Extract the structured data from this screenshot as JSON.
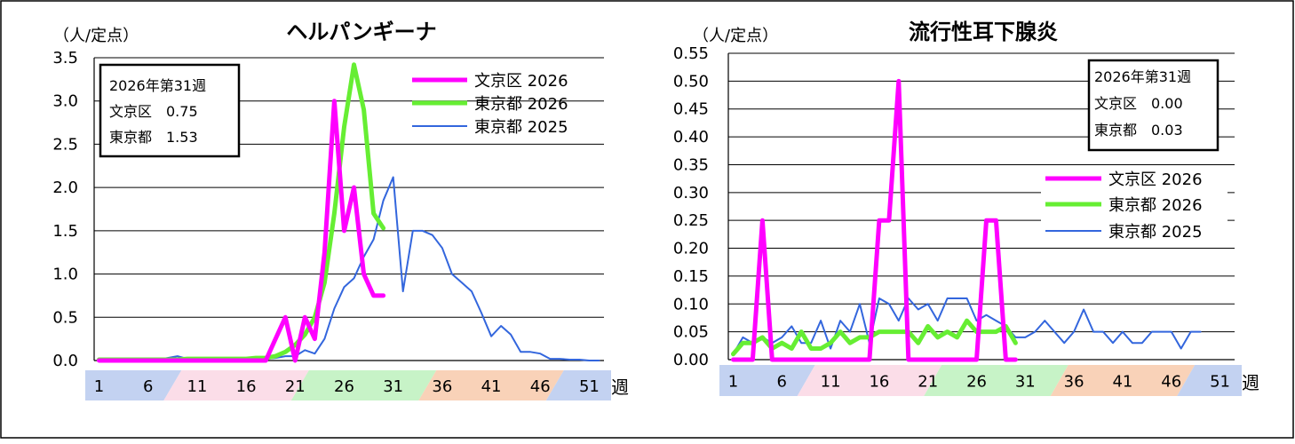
{
  "chart_data": [
    {
      "type": "line",
      "title": "ヘルパンギーナ",
      "ylabel": "（人/定点）",
      "xlabel": "週",
      "ylim": [
        0,
        3.5
      ],
      "ytick_labels": [
        "0.0",
        "0.5",
        "1.0",
        "1.5",
        "2.0",
        "2.5",
        "3.0",
        "3.5"
      ],
      "xtick_labels": [
        "1",
        "6",
        "11",
        "16",
        "21",
        "26",
        "31",
        "36",
        "41",
        "46",
        "51"
      ],
      "xtick_weeks": [
        1,
        6,
        11,
        16,
        21,
        26,
        31,
        36,
        41,
        46,
        51
      ],
      "week_bands": [
        {
          "from": 1,
          "to": 9,
          "color": "#c3d2f1"
        },
        {
          "from": 9,
          "to": 22,
          "color": "#fbdde8"
        },
        {
          "from": 22,
          "to": 35,
          "color": "#c7f3c7"
        },
        {
          "from": 35,
          "to": 48,
          "color": "#f9d2b8"
        },
        {
          "from": 48,
          "to": 53,
          "color": "#c3d2f1"
        }
      ],
      "info_box": {
        "lines": [
          "2026年第31週",
          "文京区　0.75",
          "東京都　1.53"
        ],
        "position": "top-left"
      },
      "legend_position": "top-right",
      "series": [
        {
          "name": "文京区 2026",
          "color": "#ff00ff",
          "values": [
            0,
            0,
            0,
            0,
            0,
            0,
            0,
            0,
            0,
            0,
            0,
            0,
            0,
            0,
            0,
            0,
            0,
            0,
            0.25,
            0.5,
            0.0,
            0.5,
            0.25,
            1.25,
            3.0,
            1.5,
            2.0,
            1.0,
            0.75,
            0.75
          ]
        },
        {
          "name": "東京都 2026",
          "color": "#66ee33",
          "values": [
            0.01,
            0.01,
            0.01,
            0.01,
            0.01,
            0.01,
            0.01,
            0.01,
            0.01,
            0.02,
            0.02,
            0.02,
            0.02,
            0.02,
            0.02,
            0.02,
            0.03,
            0.03,
            0.05,
            0.1,
            0.18,
            0.3,
            0.5,
            0.9,
            1.7,
            2.7,
            3.42,
            2.9,
            1.7,
            1.53
          ]
        },
        {
          "name": "東京都 2025",
          "color": "#3366dd",
          "values": [
            0.01,
            0.01,
            0.01,
            0.01,
            0.01,
            0.01,
            0.01,
            0.03,
            0.05,
            0.02,
            0.02,
            0.02,
            0.02,
            0.02,
            0.02,
            0.02,
            0.02,
            0.02,
            0.03,
            0.05,
            0.05,
            0.12,
            0.08,
            0.25,
            0.6,
            0.85,
            0.95,
            1.2,
            1.4,
            1.85,
            2.12,
            0.8,
            1.5,
            1.5,
            1.45,
            1.3,
            1.0,
            0.9,
            0.8,
            0.55,
            0.28,
            0.4,
            0.3,
            0.1,
            0.1,
            0.08,
            0.02,
            0.02,
            0.01,
            0.01,
            0.0,
            0.0
          ]
        }
      ]
    },
    {
      "type": "line",
      "title": "流行性耳下腺炎",
      "ylabel": "（人/定点）",
      "xlabel": "週",
      "ylim": [
        0,
        0.55
      ],
      "ytick_labels": [
        "0.00",
        "0.05",
        "0.10",
        "0.15",
        "0.20",
        "0.25",
        "0.30",
        "0.35",
        "0.40",
        "0.45",
        "0.50",
        "0.55"
      ],
      "xtick_labels": [
        "1",
        "6",
        "11",
        "16",
        "21",
        "26",
        "31",
        "36",
        "41",
        "46",
        "51"
      ],
      "xtick_weeks": [
        1,
        6,
        11,
        16,
        21,
        26,
        31,
        36,
        41,
        46,
        51
      ],
      "week_bands": [
        {
          "from": 1,
          "to": 9,
          "color": "#c3d2f1"
        },
        {
          "from": 9,
          "to": 22,
          "color": "#fbdde8"
        },
        {
          "from": 22,
          "to": 35,
          "color": "#c7f3c7"
        },
        {
          "from": 35,
          "to": 48,
          "color": "#f9d2b8"
        },
        {
          "from": 48,
          "to": 53,
          "color": "#c3d2f1"
        }
      ],
      "info_box": {
        "lines": [
          "2026年第31週",
          "文京区　0.00",
          "東京都　0.03"
        ],
        "position": "top-right"
      },
      "legend_position": "right",
      "series": [
        {
          "name": "文京区 2026",
          "color": "#ff00ff",
          "values": [
            0,
            0,
            0,
            0.25,
            0,
            0,
            0,
            0,
            0,
            0,
            0,
            0,
            0,
            0,
            0,
            0.25,
            0.25,
            0.5,
            0,
            0,
            0,
            0,
            0,
            0,
            0,
            0,
            0.25,
            0.25,
            0,
            0
          ]
        },
        {
          "name": "東京都 2026",
          "color": "#66ee33",
          "values": [
            0.01,
            0.03,
            0.03,
            0.04,
            0.02,
            0.03,
            0.02,
            0.05,
            0.02,
            0.02,
            0.03,
            0.05,
            0.03,
            0.04,
            0.04,
            0.05,
            0.05,
            0.05,
            0.05,
            0.03,
            0.06,
            0.04,
            0.05,
            0.04,
            0.07,
            0.05,
            0.05,
            0.05,
            0.06,
            0.03
          ]
        },
        {
          "name": "東京都 2025",
          "color": "#3366dd",
          "values": [
            0.01,
            0.04,
            0.03,
            0.04,
            0.03,
            0.04,
            0.06,
            0.03,
            0.03,
            0.07,
            0.02,
            0.07,
            0.05,
            0.1,
            0.03,
            0.11,
            0.1,
            0.07,
            0.11,
            0.09,
            0.1,
            0.07,
            0.11,
            0.11,
            0.11,
            0.07,
            0.08,
            0.07,
            0.06,
            0.04,
            0.04,
            0.05,
            0.07,
            0.05,
            0.03,
            0.05,
            0.09,
            0.05,
            0.05,
            0.03,
            0.05,
            0.03,
            0.03,
            0.05,
            0.05,
            0.05,
            0.02,
            0.05,
            0.05
          ]
        }
      ]
    }
  ]
}
